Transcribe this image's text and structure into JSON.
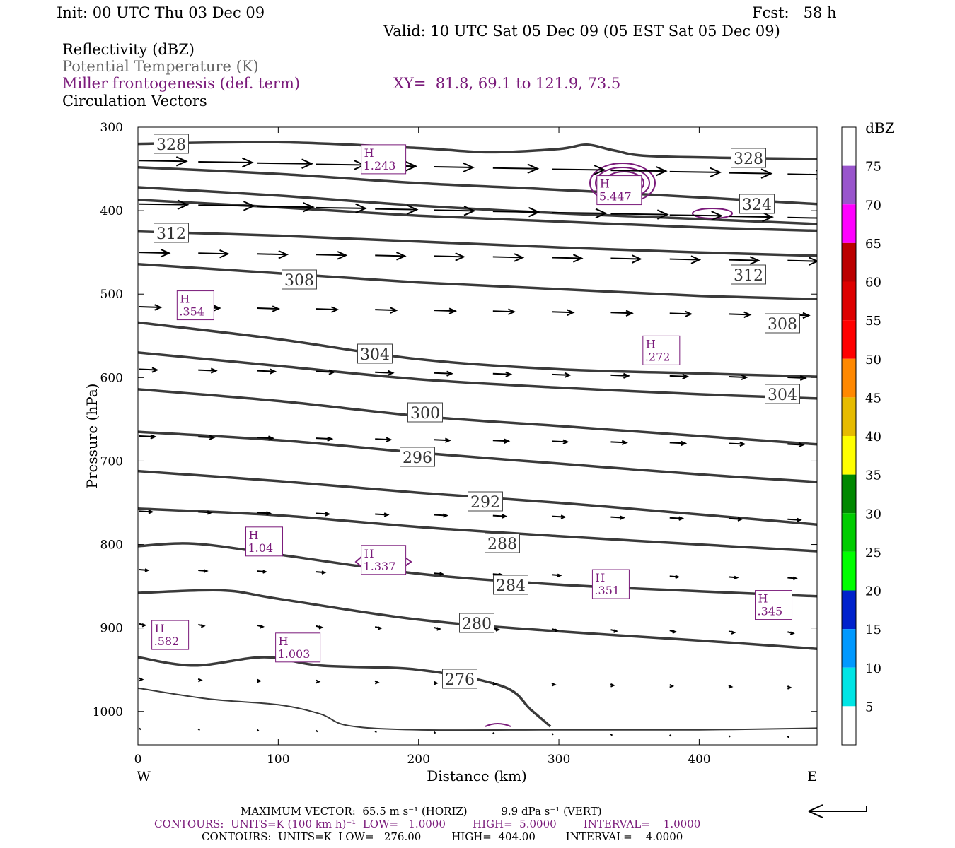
{
  "header": {
    "init": "Init: 00 UTC Thu 03 Dec 09",
    "fcst": "Fcst:   58 h",
    "valid": "Valid: 10 UTC Sat 05 Dec 09 (05 EST Sat 05 Dec 09)",
    "field1": "Reflectivity (dBZ)",
    "field2": "Potential Temperature (K)",
    "field3": "Miller frontogenesis (def. term)",
    "xy": "XY=  81.8, 69.1 to 121.9, 73.5",
    "field4": "Circulation Vectors"
  },
  "footer": {
    "max_vector": "MAXIMUM VECTOR:  65.5 m s⁻¹ (HORIZ)          9.9 dPa s⁻¹ (VERT)",
    "contours_purple": "CONTOURS:  UNITS=K (100 km h)⁻¹  LOW=   1.0000        HIGH=  5.0000        INTERVAL=    1.0000",
    "contours_black": "CONTOURS:  UNITS=K  LOW=   276.00         HIGH=  404.00         INTERVAL=    4.0000"
  },
  "colors": {
    "theta": "#3a3a3a",
    "frontogenesis": "#7a1a7a",
    "vector": "#000000"
  },
  "chart_data": {
    "type": "cross-section",
    "xlabel": "Distance (km)",
    "ylabel": "Pressure (hPa)",
    "xlim": [
      0,
      484
    ],
    "ylim": [
      300,
      1040
    ],
    "x_ticks": [
      "0",
      "100",
      "200",
      "300",
      "400"
    ],
    "y_ticks": [
      "300",
      "400",
      "500",
      "600",
      "700",
      "800",
      "900",
      "1000"
    ],
    "x_end_labels": {
      "left": "W",
      "right": "E"
    },
    "colorbar": {
      "title": "dBZ",
      "labels": [
        "5",
        "10",
        "15",
        "20",
        "25",
        "30",
        "35",
        "40",
        "45",
        "50",
        "55",
        "60",
        "65",
        "70",
        "75"
      ],
      "colors": [
        "#ffffff",
        "#00e5e5",
        "#0099ff",
        "#0022cc",
        "#00ff00",
        "#00cc00",
        "#008800",
        "#ffff00",
        "#e6bb00",
        "#ff8800",
        "#ff0000",
        "#dd0000",
        "#bb0000",
        "#ff00ff",
        "#9955cc",
        "#ffffff"
      ]
    },
    "theta_contours": [
      {
        "label": "328",
        "points": [
          [
            0,
            320
          ],
          [
            100,
            318
          ],
          [
            200,
            325
          ],
          [
            250,
            330
          ],
          [
            300,
            326
          ],
          [
            320,
            321
          ],
          [
            340,
            328
          ],
          [
            370,
            335
          ],
          [
            484,
            338
          ]
        ]
      },
      {
        "label": "324",
        "points": [
          [
            0,
            348
          ],
          [
            100,
            356
          ],
          [
            200,
            367
          ],
          [
            300,
            375
          ],
          [
            400,
            384
          ],
          [
            484,
            392
          ]
        ]
      },
      {
        "label": "",
        "points": [
          [
            0,
            372
          ],
          [
            100,
            382
          ],
          [
            200,
            394
          ],
          [
            300,
            403
          ],
          [
            400,
            410
          ],
          [
            484,
            416
          ]
        ]
      },
      {
        "label": "",
        "points": [
          [
            0,
            387
          ],
          [
            100,
            396
          ],
          [
            200,
            406
          ],
          [
            300,
            413
          ],
          [
            400,
            420
          ],
          [
            484,
            424
          ]
        ]
      },
      {
        "label": "312",
        "points": [
          [
            0,
            425
          ],
          [
            100,
            430
          ],
          [
            200,
            437
          ],
          [
            300,
            444
          ],
          [
            400,
            450
          ],
          [
            484,
            454
          ]
        ]
      },
      {
        "label": "308",
        "points": [
          [
            0,
            464
          ],
          [
            100,
            475
          ],
          [
            200,
            486
          ],
          [
            300,
            494
          ],
          [
            400,
            502
          ],
          [
            484,
            506
          ]
        ]
      },
      {
        "label": "",
        "points": [
          [
            0,
            534
          ],
          [
            100,
            554
          ],
          [
            200,
            578
          ],
          [
            300,
            590
          ],
          [
            400,
            595
          ],
          [
            484,
            599
          ]
        ]
      },
      {
        "label": "304",
        "points": [
          [
            0,
            570
          ],
          [
            100,
            586
          ],
          [
            200,
            602
          ],
          [
            300,
            612
          ],
          [
            400,
            620
          ],
          [
            484,
            625
          ]
        ]
      },
      {
        "label": "300",
        "points": [
          [
            0,
            614
          ],
          [
            100,
            628
          ],
          [
            200,
            646
          ],
          [
            300,
            658
          ],
          [
            400,
            670
          ],
          [
            484,
            680
          ]
        ]
      },
      {
        "label": "296",
        "points": [
          [
            0,
            665
          ],
          [
            100,
            675
          ],
          [
            200,
            690
          ],
          [
            300,
            703
          ],
          [
            400,
            716
          ],
          [
            484,
            725
          ]
        ]
      },
      {
        "label": "292",
        "points": [
          [
            0,
            712
          ],
          [
            100,
            724
          ],
          [
            200,
            738
          ],
          [
            300,
            750
          ],
          [
            400,
            764
          ],
          [
            484,
            776
          ]
        ]
      },
      {
        "label": "288",
        "points": [
          [
            0,
            757
          ],
          [
            100,
            765
          ],
          [
            200,
            779
          ],
          [
            300,
            790
          ],
          [
            400,
            800
          ],
          [
            484,
            808
          ]
        ]
      },
      {
        "label": "284",
        "points": [
          [
            0,
            802
          ],
          [
            40,
            799
          ],
          [
            100,
            812
          ],
          [
            200,
            835
          ],
          [
            300,
            848
          ],
          [
            400,
            856
          ],
          [
            484,
            862
          ]
        ]
      },
      {
        "label": "280",
        "points": [
          [
            0,
            858
          ],
          [
            60,
            855
          ],
          [
            100,
            865
          ],
          [
            200,
            890
          ],
          [
            300,
            904
          ],
          [
            400,
            915
          ],
          [
            484,
            925
          ]
        ]
      },
      {
        "label": "276",
        "points": [
          [
            0,
            935
          ],
          [
            40,
            945
          ],
          [
            90,
            935
          ],
          [
            130,
            945
          ],
          [
            200,
            950
          ],
          [
            260,
            970
          ],
          [
            280,
            998
          ],
          [
            294,
            1018
          ]
        ]
      },
      {
        "label": "",
        "points": [
          [
            0,
            972
          ],
          [
            50,
            985
          ],
          [
            100,
            992
          ],
          [
            130,
            1003
          ],
          [
            150,
            1017
          ],
          [
            200,
            1022
          ],
          [
            300,
            1022
          ],
          [
            400,
            1022
          ],
          [
            484,
            1020
          ]
        ]
      }
    ],
    "frontogenesis_maxima": [
      {
        "label": "H",
        "value": "1.243",
        "x": 175,
        "p": 338
      },
      {
        "label": "H",
        "value": "5.447",
        "x": 343,
        "p": 375
      },
      {
        "label": "H",
        "value": ".354",
        "x": 41,
        "p": 513
      },
      {
        "label": "H",
        "value": ".272",
        "x": 373,
        "p": 567
      },
      {
        "label": "H",
        "value": "1.04",
        "x": 90,
        "p": 796
      },
      {
        "label": "H",
        "value": "1.337",
        "x": 175,
        "p": 818
      },
      {
        "label": "H",
        "value": ".351",
        "x": 337,
        "p": 847
      },
      {
        "label": "H",
        "value": ".345",
        "x": 453,
        "p": 872
      },
      {
        "label": "H",
        "value": ".582",
        "x": 23,
        "p": 908
      },
      {
        "label": "H",
        "value": "1.003",
        "x": 114,
        "p": 923
      }
    ]
  }
}
